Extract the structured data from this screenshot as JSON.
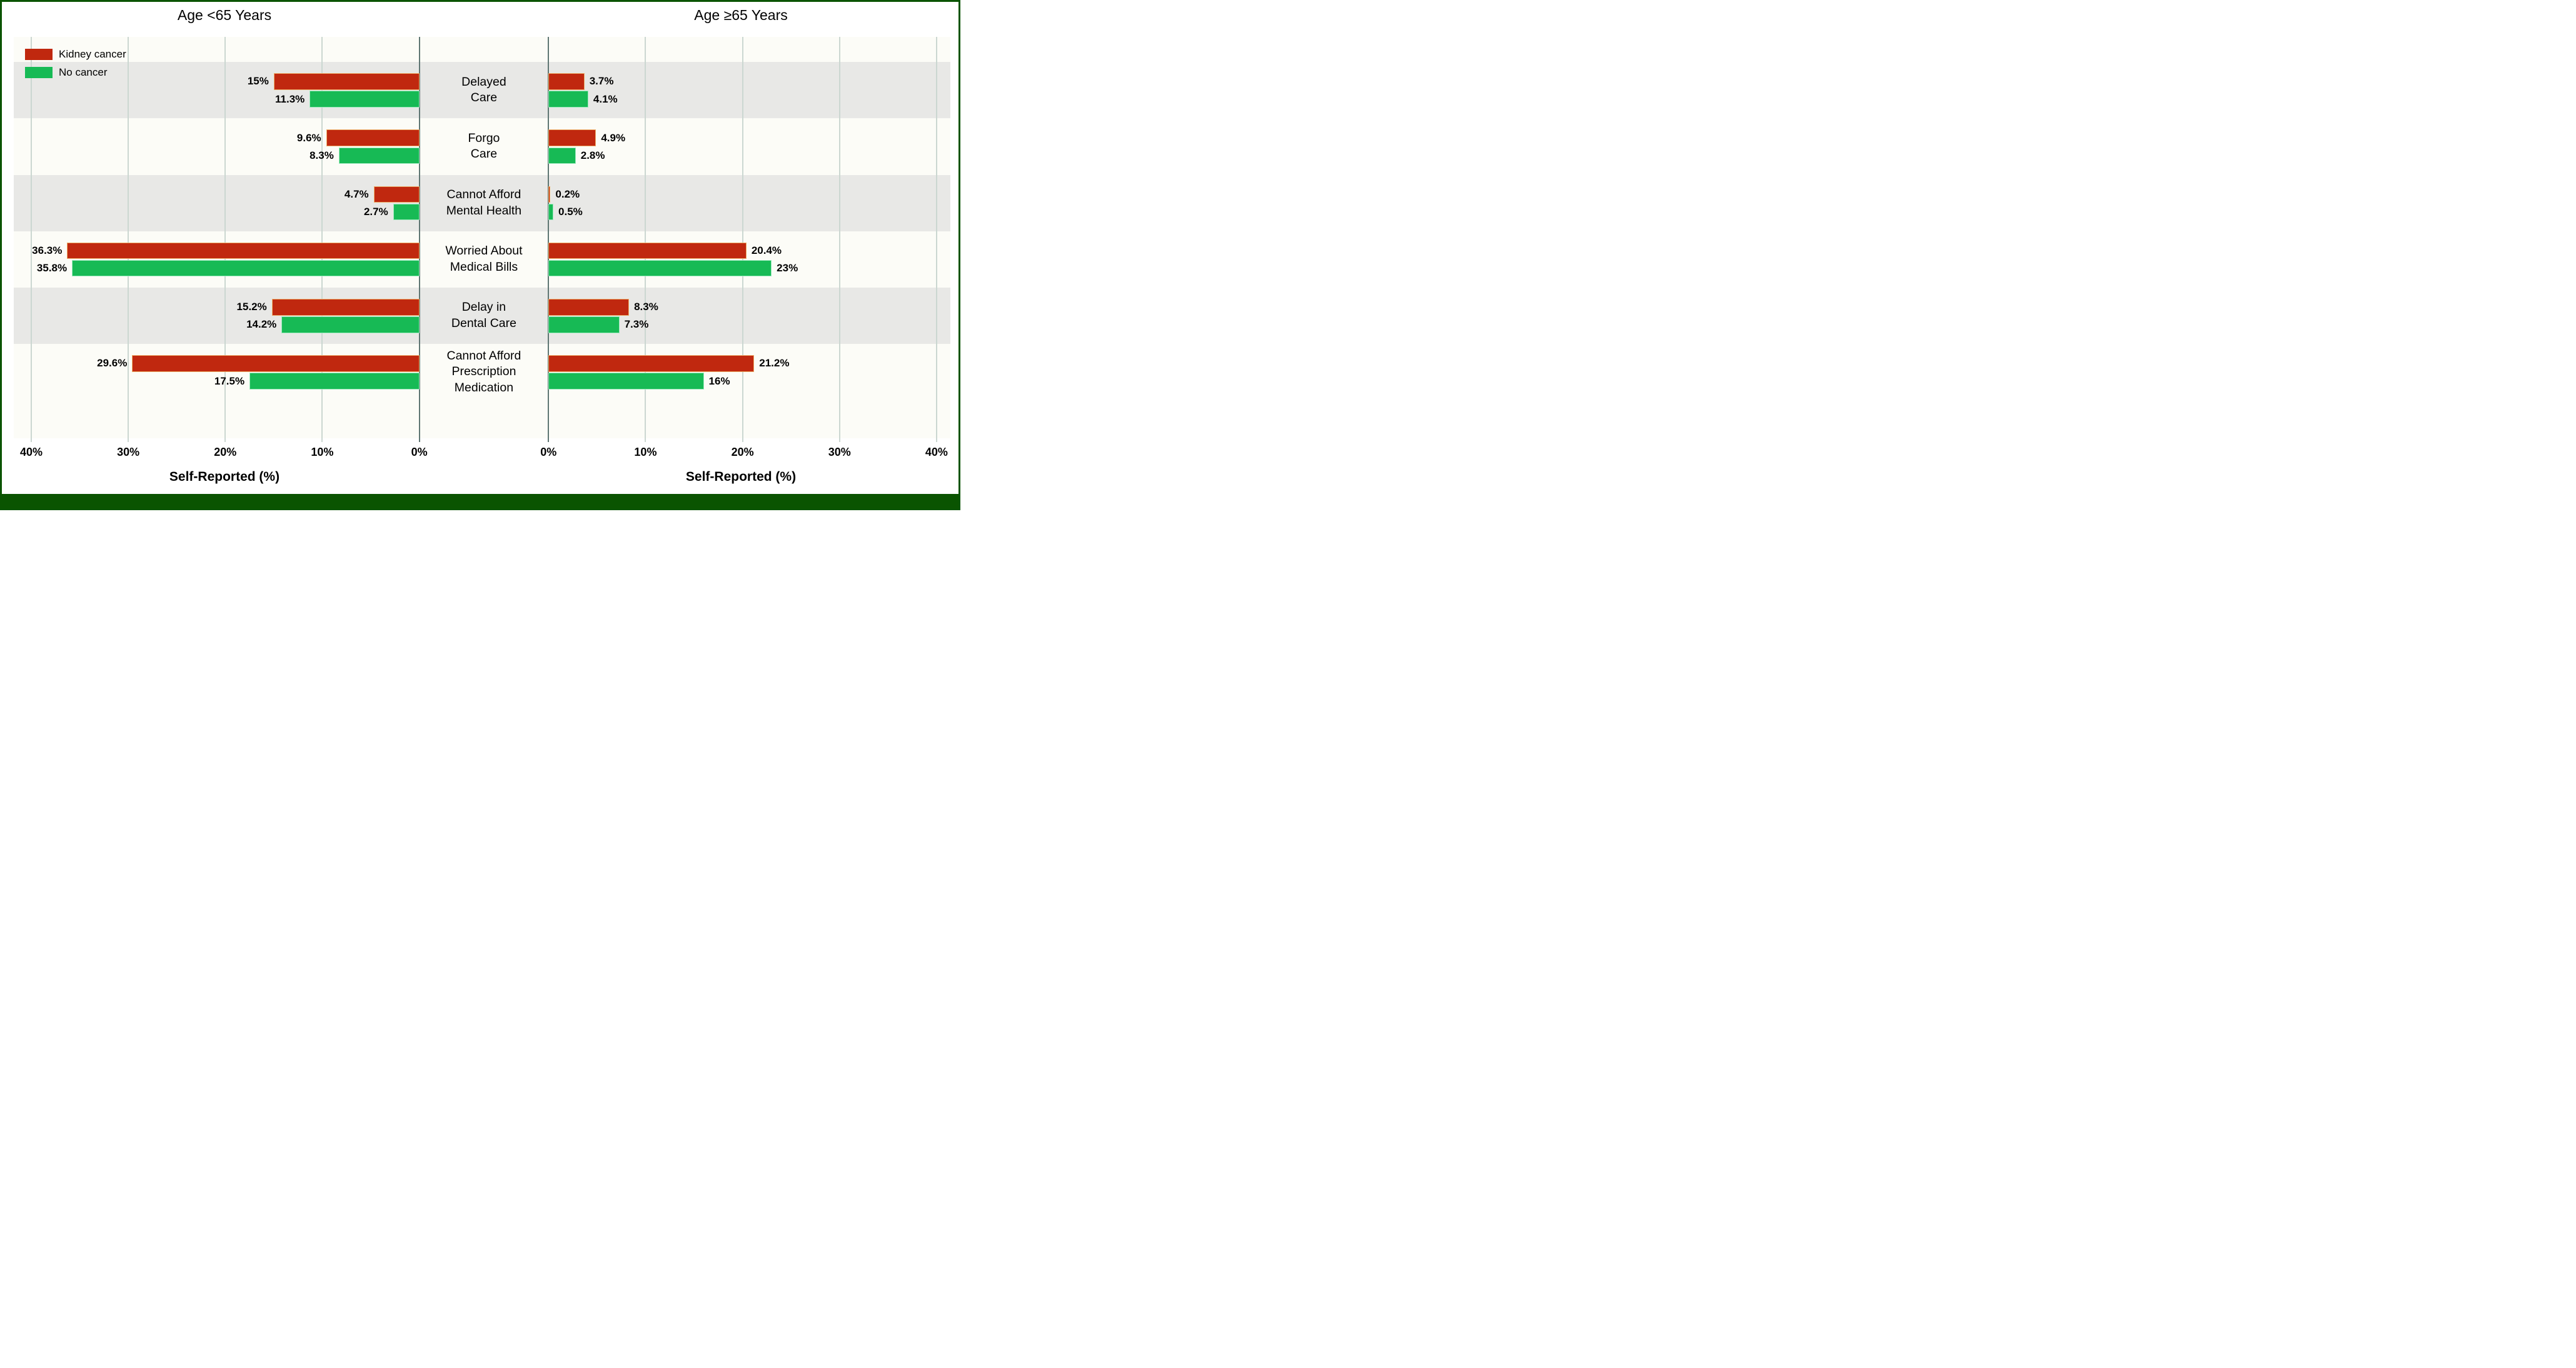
{
  "figure": {
    "panel_titles": {
      "left": "Age <65 Years",
      "right": "Age ≥65 Years"
    },
    "axis": {
      "label_left": "Self-Reported (%)",
      "label_right": "Self-Reported (%)"
    },
    "colors": {
      "kidney_cancer": "#C0280F",
      "no_cancer": "#17BA55",
      "frame_green": "#0A5401",
      "stripe_gray": "#E8E8E6",
      "plot_background": "#FCFCF7",
      "gridline": "#CBD7D1",
      "zero_axis": "#5F7673"
    }
  },
  "chart_data": {
    "type": "bar",
    "orientation": "horizontal-diverging",
    "axis_range": [
      0,
      40
    ],
    "grid": true,
    "background_stripes": "alternating rows (gray/white)",
    "legend_position": "top-left",
    "legend": [
      {
        "name": "Kidney cancer",
        "color": "#C0280F"
      },
      {
        "name": "No cancer",
        "color": "#17BA55"
      }
    ],
    "categories": [
      "Delayed Care",
      "Forgo Care",
      "Cannot Afford Mental Health",
      "Worried About Medical Bills",
      "Delay in Dental Care",
      "Cannot Afford Prescription Medication"
    ],
    "category_lines": [
      [
        "Delayed",
        "Care"
      ],
      [
        "Forgo",
        "Care"
      ],
      [
        "Cannot Afford",
        "Mental Health"
      ],
      [
        "Worried About",
        "Medical Bills"
      ],
      [
        "Delay in",
        "Dental Care"
      ],
      [
        "Cannot Afford",
        "Prescription",
        "Medication"
      ]
    ],
    "panels": [
      {
        "side": "left",
        "title": "Age <65 Years",
        "xlabel": "Self-Reported (%)",
        "ticks": [
          "40%",
          "30%",
          "20%",
          "10%",
          "0%"
        ],
        "series": [
          {
            "name": "Kidney cancer",
            "values": [
              15,
              9.6,
              4.7,
              36.3,
              15.2,
              29.6
            ],
            "labels": [
              "15%",
              "9.6%",
              "4.7%",
              "36.3%",
              "15.2%",
              "29.6%"
            ]
          },
          {
            "name": "No cancer",
            "values": [
              11.3,
              8.3,
              2.7,
              35.8,
              14.2,
              17.5
            ],
            "labels": [
              "11.3%",
              "8.3%",
              "2.7%",
              "35.8%",
              "14.2%",
              "17.5%"
            ]
          }
        ]
      },
      {
        "side": "right",
        "title": "Age ≥65 Years",
        "xlabel": "Self-Reported (%)",
        "ticks": [
          "0%",
          "10%",
          "20%",
          "30%",
          "40%"
        ],
        "series": [
          {
            "name": "Kidney cancer",
            "values": [
              3.7,
              4.9,
              0.2,
              20.4,
              8.3,
              21.2
            ],
            "labels": [
              "3.7%",
              "4.9%",
              "0.2%",
              "20.4%",
              "8.3%",
              "21.2%"
            ]
          },
          {
            "name": "No cancer",
            "values": [
              4.1,
              2.8,
              0.5,
              23,
              7.3,
              16
            ],
            "labels": [
              "4.1%",
              "2.8%",
              "0.5%",
              "23%",
              "7.3%",
              "16%"
            ]
          }
        ]
      }
    ]
  }
}
